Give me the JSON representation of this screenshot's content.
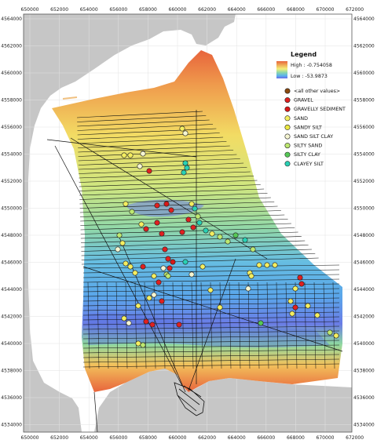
{
  "map": {
    "x_ticks": [
      "650000",
      "652000",
      "654000",
      "656000",
      "658000",
      "660000",
      "662000",
      "664000",
      "666000",
      "668000",
      "670000",
      "672000"
    ],
    "y_ticks": [
      "4564000",
      "4562000",
      "4560000",
      "4558000",
      "4556000",
      "4554000",
      "4552000",
      "4550000",
      "4548000",
      "4546000",
      "4544000",
      "4542000",
      "4540000",
      "4538000",
      "4536000",
      "4534000"
    ],
    "colors": {
      "land": "#c6c6c6",
      "water": "#ffffff",
      "grid": "#e2e2e2",
      "track": "#111111"
    }
  },
  "legend": {
    "title": "Legend",
    "high_label": "High : -0.754058",
    "low_label": "Low : -53.9873",
    "ramp_colors": [
      "#e8643c",
      "#f0b45a",
      "#f4ee7a",
      "#8fd8a8",
      "#5ab0ee",
      "#6a6ae6"
    ],
    "items": [
      {
        "label": "<all other values>",
        "color": "#8b4a10"
      },
      {
        "label": "GRAVEL",
        "color": "#e02020"
      },
      {
        "label": "GRAVELLY SEDIMENT",
        "color": "#d81818"
      },
      {
        "label": "SAND",
        "color": "#f4ee60"
      },
      {
        "label": "SANDY SILT",
        "color": "#ece842"
      },
      {
        "label": "SAND SILT CLAY",
        "color": "#f6f6d2"
      },
      {
        "label": "SILTY SAND",
        "color": "#bde870"
      },
      {
        "label": "SILTY CLAY",
        "color": "#56c856"
      },
      {
        "label": "CLAYEY SILT",
        "color": "#2ad0b4"
      }
    ]
  }
}
